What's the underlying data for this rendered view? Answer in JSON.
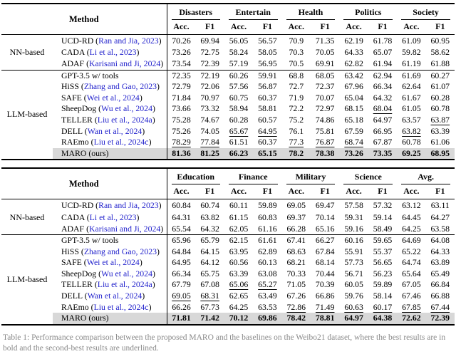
{
  "caption": "Table 1: Performance comparison between the proposed MARO and the baselines on the Weibo21 dataset, where the best results are in bold and the second-best results are underlined.",
  "colors": {
    "citation_blue": "#2222cc",
    "highlight_gray": "#d8d8d8"
  },
  "legend": {
    "bold_means": "best result",
    "underline_means": "second-best result"
  },
  "tables": [
    {
      "method_header": "Method",
      "subheader": [
        "Acc.",
        "F1"
      ],
      "domains": [
        "Disasters",
        "Entertain",
        "Health",
        "Politics",
        "Society"
      ],
      "groups": [
        {
          "label": "NN-based",
          "rows": [
            {
              "name": "UCD-RD",
              "cite": "Ran and Jia, 2023",
              "highlight": false,
              "cells": [
                "70.26",
                "69.94",
                "56.05",
                "56.57",
                "70.9",
                "71.35",
                "62.19",
                "61.78",
                "61.09",
                "60.95"
              ]
            },
            {
              "name": "CADA",
              "cite": "Li et al., 2023",
              "highlight": false,
              "cells": [
                "73.26",
                "72.75",
                "58.24",
                "58.05",
                "70.3",
                "70.05",
                "64.33",
                "65.07",
                "59.82",
                "58.62"
              ]
            },
            {
              "name": "ADAF",
              "cite": "Karisani and Ji, 2024",
              "highlight": false,
              "cells": [
                "73.54",
                "72.39",
                "57.19",
                "56.95",
                "70.5",
                "69.91",
                "62.82",
                "61.94",
                "61.19",
                "61.88"
              ]
            }
          ]
        },
        {
          "label": "LLM-based",
          "rows": [
            {
              "name": "GPT-3.5 w/ tools",
              "cite": "",
              "highlight": false,
              "cells": [
                "72.35",
                "72.19",
                "60.26",
                "59.91",
                "68.8",
                "68.05",
                "63.42",
                "62.94",
                "61.69",
                "60.27"
              ]
            },
            {
              "name": "HiSS",
              "cite": "Zhang and Gao, 2023",
              "highlight": false,
              "cells": [
                "72.79",
                "72.06",
                "57.56",
                "56.87",
                "72.7",
                "72.37",
                "67.96",
                "66.34",
                "62.64",
                "61.07"
              ]
            },
            {
              "name": "SAFE",
              "cite": "Wei et al., 2024",
              "highlight": false,
              "cells": [
                "71.84",
                "70.97",
                "60.75",
                "60.37",
                "71.9",
                "70.07",
                "65.04",
                "64.32",
                "61.67",
                "60.28"
              ]
            },
            {
              "name": "SheepDog",
              "cite": "Wu et al., 2024",
              "highlight": false,
              "cells": [
                "73.66",
                "73.32",
                "58.94",
                "58.81",
                "72.2",
                "72.97",
                "68.15",
                "68.04|u",
                "61.05",
                "60.78"
              ]
            },
            {
              "name": "TELLER",
              "cite": "Liu et al., 2024a",
              "highlight": false,
              "cells": [
                "75.28",
                "74.67",
                "60.28",
                "60.57",
                "75.2",
                "74.86",
                "65.18",
                "64.97",
                "63.57",
                "63.87|u"
              ]
            },
            {
              "name": "DELL",
              "cite": "Wan et al., 2024",
              "highlight": false,
              "cells": [
                "75.26",
                "74.05",
                "65.67|u",
                "64.95|u",
                "76.1",
                "75.81",
                "67.59",
                "66.95",
                "63.82|u",
                "63.39"
              ]
            },
            {
              "name": "RAEmo",
              "cite": "Liu et al., 2024c",
              "highlight": false,
              "cells": [
                "78.29|u",
                "77.84|u",
                "61.51",
                "60.37",
                "77.3|u",
                "76.87|u",
                "68.74|u",
                "67.87",
                "60.78",
                "61.06"
              ]
            },
            {
              "name": "MARO (ours)",
              "cite": "",
              "highlight": true,
              "cells": [
                "81.36|b",
                "81.25|b",
                "66.23|b",
                "65.15|b",
                "78.2|b",
                "78.38|b",
                "73.26|b",
                "73.35|b",
                "69.25|b",
                "68.95|b"
              ]
            }
          ]
        }
      ]
    },
    {
      "method_header": "Method",
      "subheader": [
        "Acc.",
        "F1"
      ],
      "domains": [
        "Education",
        "Finance",
        "Military",
        "Science",
        "Avg."
      ],
      "groups": [
        {
          "label": "NN-based",
          "rows": [
            {
              "name": "UCD-RD",
              "cite": "Ran and Jia, 2023",
              "highlight": false,
              "cells": [
                "60.84",
                "60.74",
                "60.11",
                "59.89",
                "69.05",
                "69.47",
                "57.58",
                "57.32",
                "63.12",
                "63.11"
              ]
            },
            {
              "name": "CADA",
              "cite": "Li et al., 2023",
              "highlight": false,
              "cells": [
                "64.31",
                "63.82",
                "61.15",
                "60.83",
                "69.37",
                "70.14",
                "59.31",
                "59.14",
                "64.45",
                "64.27"
              ]
            },
            {
              "name": "ADAF",
              "cite": "Karisani and Ji, 2024",
              "highlight": false,
              "cells": [
                "65.54",
                "64.32",
                "62.05",
                "61.16",
                "66.28",
                "65.16",
                "59.16",
                "58.49",
                "64.25",
                "63.58"
              ]
            }
          ]
        },
        {
          "label": "LLM-based",
          "rows": [
            {
              "name": "GPT-3.5 w/ tools",
              "cite": "",
              "highlight": false,
              "cells": [
                "65.96",
                "65.79",
                "62.15",
                "61.61",
                "67.41",
                "66.27",
                "60.16",
                "59.65",
                "64.69",
                "64.08"
              ]
            },
            {
              "name": "HiSS",
              "cite": "Zhang and Gao, 2023",
              "highlight": false,
              "cells": [
                "64.84",
                "64.15",
                "63.95",
                "62.89",
                "68.63",
                "67.84",
                "55.91",
                "55.37",
                "65.22",
                "64.33"
              ]
            },
            {
              "name": "SAFE",
              "cite": "Wei et al., 2024",
              "highlight": false,
              "cells": [
                "64.95",
                "64.12",
                "60.56",
                "60.13",
                "68.21",
                "68.14",
                "57.73",
                "56.65",
                "64.74",
                "63.89"
              ]
            },
            {
              "name": "SheepDog",
              "cite": "Wu et al., 2024",
              "highlight": false,
              "cells": [
                "66.34",
                "65.75",
                "63.39",
                "63.08",
                "70.33",
                "70.44",
                "56.71",
                "56.23",
                "65.64",
                "65.49"
              ]
            },
            {
              "name": "TELLER",
              "cite": "Liu et al., 2024a",
              "highlight": false,
              "cells": [
                "67.79",
                "67.08",
                "65.06|u",
                "65.27|u",
                "71.05",
                "70.39",
                "60.05",
                "59.89",
                "67.05",
                "66.84"
              ]
            },
            {
              "name": "DELL",
              "cite": "Wan et al., 2024",
              "highlight": false,
              "cells": [
                "69.05|u",
                "68.31|u",
                "62.65",
                "63.49",
                "67.26",
                "66.86",
                "59.76",
                "58.14",
                "67.46",
                "66.88"
              ]
            },
            {
              "name": "RAEmo",
              "cite": "Liu et al., 2024c",
              "highlight": false,
              "cells": [
                "66.26",
                "67.73",
                "64.25",
                "63.53",
                "72.86|u",
                "71.49|u",
                "60.63|u",
                "60.17|u",
                "67.85|u",
                "67.44|u"
              ]
            },
            {
              "name": "MARO (ours)",
              "cite": "",
              "highlight": true,
              "cells": [
                "71.81|b",
                "71.42|b",
                "70.12|b",
                "69.86|b",
                "78.42|b",
                "78.81|b",
                "64.97|b",
                "64.38|b",
                "72.62|b",
                "72.39|b"
              ]
            }
          ]
        }
      ]
    }
  ]
}
